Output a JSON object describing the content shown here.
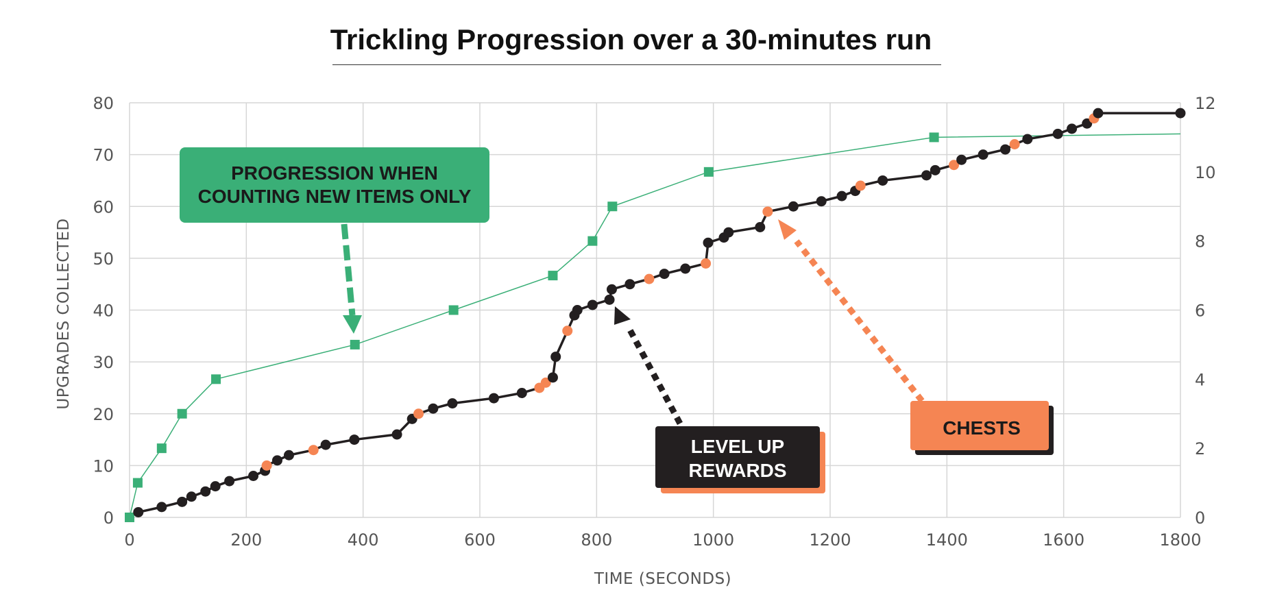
{
  "chart_data": {
    "type": "line",
    "title": "Trickling Progression over a 30-minutes run",
    "xlabel": "TIME (SECONDS)",
    "ylabel": "UPGRADES COLLECTED",
    "xlim": [
      0,
      1800
    ],
    "ylim": [
      0,
      80
    ],
    "y2lim": [
      0,
      12
    ],
    "x_ticks": [
      "0",
      "200",
      "400",
      "600",
      "800",
      "1000",
      "1200",
      "1400",
      "1600",
      "1800"
    ],
    "y_ticks": [
      "0",
      "10",
      "20",
      "30",
      "40",
      "50",
      "60",
      "70",
      "80"
    ],
    "y2_ticks": [
      "0",
      "2",
      "4",
      "6",
      "8",
      "10",
      "12"
    ],
    "grid": true,
    "legend": "none",
    "colors": {
      "upgrades": "#231f20",
      "chest": "#f58553",
      "new_items": "#3aaf77"
    },
    "series": [
      {
        "key": "new_items",
        "axis": "right",
        "marker": "square",
        "points": [
          [
            0,
            0
          ],
          [
            14,
            1
          ],
          [
            55,
            2
          ],
          [
            90,
            3
          ],
          [
            148,
            4
          ],
          [
            386,
            5
          ],
          [
            555,
            6
          ],
          [
            725,
            7
          ],
          [
            793,
            8
          ],
          [
            827,
            9
          ],
          [
            992,
            10
          ],
          [
            1378,
            11
          ],
          [
            1800,
            11.1
          ]
        ]
      },
      {
        "key": "upgrades",
        "axis": "left",
        "marker": "circle",
        "points": [
          [
            15,
            1,
            "u"
          ],
          [
            55,
            2,
            "u"
          ],
          [
            90,
            3,
            "u"
          ],
          [
            106,
            4,
            "u"
          ],
          [
            130,
            5,
            "u"
          ],
          [
            147,
            6,
            "u"
          ],
          [
            171,
            7,
            "u"
          ],
          [
            212,
            8,
            "u"
          ],
          [
            232,
            9,
            "u"
          ],
          [
            235,
            10,
            "c"
          ],
          [
            253,
            11,
            "u"
          ],
          [
            273,
            12,
            "u"
          ],
          [
            315,
            13,
            "c"
          ],
          [
            336,
            14,
            "u"
          ],
          [
            385,
            15,
            "u"
          ],
          [
            458,
            16,
            "u"
          ],
          [
            484,
            19,
            "u"
          ],
          [
            495,
            20,
            "c"
          ],
          [
            520,
            21,
            "u"
          ],
          [
            553,
            22,
            "u"
          ],
          [
            624,
            23,
            "u"
          ],
          [
            672,
            24,
            "u"
          ],
          [
            702,
            25,
            "c"
          ],
          [
            713,
            26,
            "c"
          ],
          [
            725,
            27,
            "u"
          ],
          [
            730,
            31,
            "u"
          ],
          [
            750,
            36,
            "c"
          ],
          [
            762,
            39,
            "u"
          ],
          [
            767,
            40,
            "u"
          ],
          [
            793,
            41,
            "u"
          ],
          [
            822,
            42,
            "u"
          ],
          [
            826,
            44,
            "u"
          ],
          [
            857,
            45,
            "u"
          ],
          [
            890,
            46,
            "c"
          ],
          [
            916,
            47,
            "u"
          ],
          [
            952,
            48,
            "u"
          ],
          [
            987,
            49,
            "c"
          ],
          [
            991,
            53,
            "u"
          ],
          [
            1018,
            54,
            "u"
          ],
          [
            1026,
            55,
            "u"
          ],
          [
            1080,
            56,
            "u"
          ],
          [
            1093,
            59,
            "c"
          ],
          [
            1137,
            60,
            "u"
          ],
          [
            1185,
            61,
            "u"
          ],
          [
            1220,
            62,
            "u"
          ],
          [
            1243,
            63,
            "u"
          ],
          [
            1252,
            64,
            "c"
          ],
          [
            1290,
            65,
            "u"
          ],
          [
            1365,
            66,
            "u"
          ],
          [
            1380,
            67,
            "u"
          ],
          [
            1412,
            68,
            "c"
          ],
          [
            1425,
            69,
            "u"
          ],
          [
            1462,
            70,
            "u"
          ],
          [
            1500,
            71,
            "u"
          ],
          [
            1516,
            72,
            "c"
          ],
          [
            1538,
            73,
            "u"
          ],
          [
            1590,
            74,
            "u"
          ],
          [
            1614,
            75,
            "u"
          ],
          [
            1640,
            76,
            "u"
          ],
          [
            1652,
            77,
            "c"
          ],
          [
            1659,
            78,
            "u"
          ],
          [
            1800,
            78,
            "u"
          ]
        ]
      }
    ],
    "annotations": {
      "new_items": {
        "lines": [
          "PROGRESSION WHEN",
          "COUNTING NEW ITEMS ONLY"
        ]
      },
      "level_up": {
        "lines": [
          "LEVEL UP",
          "REWARDS"
        ]
      },
      "chests": {
        "lines": [
          "CHESTS"
        ]
      }
    }
  }
}
